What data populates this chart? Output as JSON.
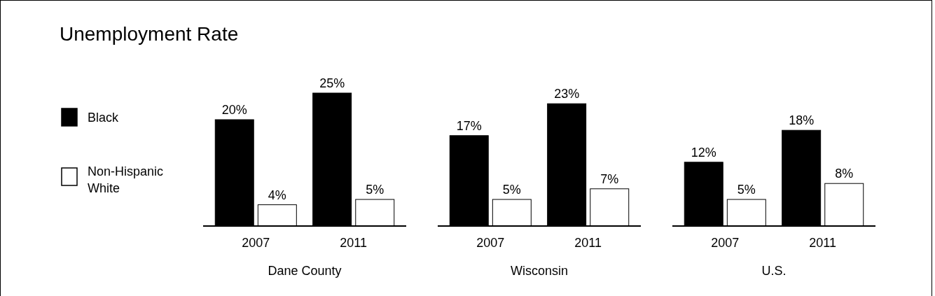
{
  "chart_data": [
    {
      "type": "bar",
      "title": "Unemployment Rate",
      "categories": [
        "2007",
        "2011"
      ],
      "xlabel": "Dane County",
      "legend": "left",
      "series": [
        {
          "name": "Black",
          "color": "#000000",
          "values": [
            20,
            25
          ],
          "value_labels": [
            "20%",
            "25%"
          ]
        },
        {
          "name": "Non-Hispanic White",
          "color": "#ffffff",
          "values": [
            4,
            5
          ],
          "value_labels": [
            "4%",
            "5%"
          ]
        }
      ]
    },
    {
      "type": "bar",
      "categories": [
        "2007",
        "2011"
      ],
      "xlabel": "Wisconsin",
      "series": [
        {
          "color": "#000000",
          "values": [
            17,
            23
          ],
          "value_labels": [
            "17%",
            "23%"
          ]
        },
        {
          "color": "#ffffff",
          "values": [
            5,
            7
          ],
          "value_labels": [
            "5%",
            "7%"
          ]
        }
      ]
    },
    {
      "type": "bar",
      "categories": [
        "2007",
        "2011"
      ],
      "xlabel": "U.S.",
      "series": [
        {
          "color": "#000000",
          "values": [
            12,
            18
          ],
          "value_labels": [
            "12%",
            "18%"
          ]
        },
        {
          "color": "#ffffff",
          "values": [
            5,
            8
          ],
          "value_labels": [
            "5%",
            "8%"
          ]
        }
      ]
    }
  ]
}
